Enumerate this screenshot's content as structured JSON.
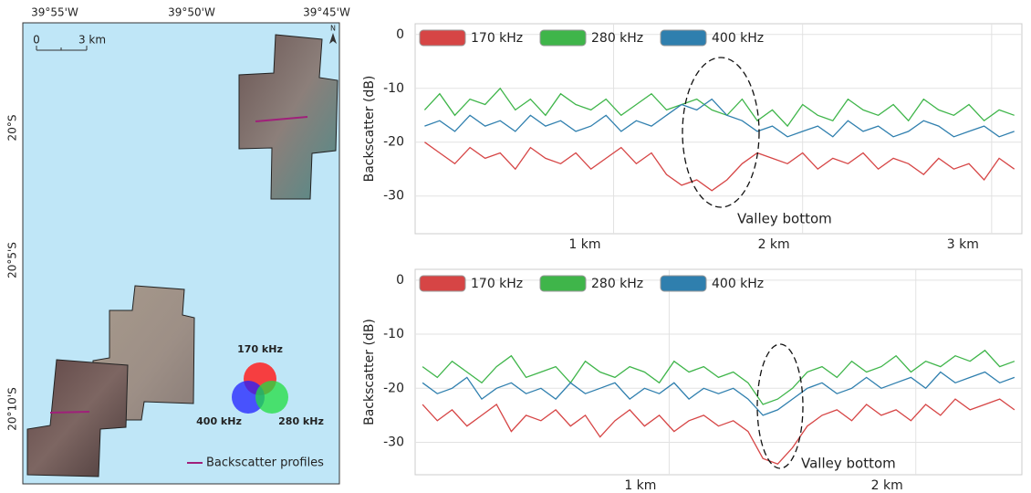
{
  "chart_data": [
    {
      "type": "line",
      "ylabel": "Backscatter (dB)",
      "annotation": "Valley bottom",
      "x": [
        0,
        0.08,
        0.16,
        0.24,
        0.32,
        0.4,
        0.48,
        0.56,
        0.64,
        0.72,
        0.8,
        0.88,
        0.96,
        1.04,
        1.12,
        1.2,
        1.28,
        1.36,
        1.44,
        1.52,
        1.6,
        1.68,
        1.76,
        1.84,
        1.92,
        2,
        2.08,
        2.16,
        2.24,
        2.32,
        2.4,
        2.48,
        2.56,
        2.64,
        2.72,
        2.8,
        2.88,
        2.96,
        3.04,
        3.12
      ],
      "xlim": [
        -0.05,
        3.16
      ],
      "xticks": [
        {
          "value": 1,
          "label": "1 km"
        },
        {
          "value": 2,
          "label": "2 km"
        },
        {
          "value": 3,
          "label": "3 km"
        }
      ],
      "ylim": [
        -37,
        2
      ],
      "yticks": [
        0,
        -10,
        -20,
        -30
      ],
      "grid": true,
      "series": [
        {
          "name": "170 kHz",
          "color": "#d64545",
          "values": [
            -20,
            -22,
            -24,
            -21,
            -23,
            -22,
            -25,
            -21,
            -23,
            -24,
            -22,
            -25,
            -23,
            -21,
            -24,
            -22,
            -26,
            -28,
            -27,
            -29,
            -27,
            -24,
            -22,
            -23,
            -24,
            -22,
            -25,
            -23,
            -24,
            -22,
            -25,
            -23,
            -24,
            -26,
            -23,
            -25,
            -24,
            -27,
            -23,
            -25
          ]
        },
        {
          "name": "280 kHz",
          "color": "#3fb54a",
          "values": [
            -14,
            -11,
            -15,
            -12,
            -13,
            -10,
            -14,
            -12,
            -15,
            -11,
            -13,
            -14,
            -12,
            -15,
            -13,
            -11,
            -14,
            -13,
            -12,
            -14,
            -15,
            -12,
            -16,
            -14,
            -17,
            -13,
            -15,
            -16,
            -12,
            -14,
            -15,
            -13,
            -16,
            -12,
            -14,
            -15,
            -13,
            -16,
            -14,
            -15
          ]
        },
        {
          "name": "400 kHz",
          "color": "#2f7fae",
          "values": [
            -17,
            -16,
            -18,
            -15,
            -17,
            -16,
            -18,
            -15,
            -17,
            -16,
            -18,
            -17,
            -15,
            -18,
            -16,
            -17,
            -15,
            -13,
            -14,
            -12,
            -15,
            -16,
            -18,
            -17,
            -19,
            -18,
            -17,
            -19,
            -16,
            -18,
            -17,
            -19,
            -18,
            -16,
            -17,
            -19,
            -18,
            -17,
            -19,
            -18
          ]
        }
      ]
    },
    {
      "type": "line",
      "ylabel": "Backscatter (dB)",
      "annotation": "Valley bottom",
      "x": [
        0,
        0.06,
        0.12,
        0.18,
        0.24,
        0.3,
        0.36,
        0.42,
        0.48,
        0.54,
        0.6,
        0.66,
        0.72,
        0.78,
        0.84,
        0.9,
        0.96,
        1.02,
        1.08,
        1.14,
        1.2,
        1.26,
        1.32,
        1.38,
        1.44,
        1.5,
        1.56,
        1.62,
        1.68,
        1.74,
        1.8,
        1.86,
        1.92,
        1.98,
        2.04,
        2.1,
        2.16,
        2.22,
        2.28,
        2.34,
        2.4
      ],
      "xlim": [
        -0.03,
        2.43
      ],
      "xticks": [
        {
          "value": 1,
          "label": "1 km"
        },
        {
          "value": 2,
          "label": "2 km"
        }
      ],
      "ylim": [
        -36,
        2
      ],
      "yticks": [
        0,
        -10,
        -20,
        -30
      ],
      "grid": true,
      "series": [
        {
          "name": "170 kHz",
          "color": "#d64545",
          "values": [
            -23,
            -26,
            -24,
            -27,
            -25,
            -23,
            -28,
            -25,
            -26,
            -24,
            -27,
            -25,
            -29,
            -26,
            -24,
            -27,
            -25,
            -28,
            -26,
            -25,
            -27,
            -26,
            -28,
            -33,
            -34,
            -31,
            -27,
            -25,
            -24,
            -26,
            -23,
            -25,
            -24,
            -26,
            -23,
            -25,
            -22,
            -24,
            -23,
            -22,
            -24
          ]
        },
        {
          "name": "280 kHz",
          "color": "#3fb54a",
          "values": [
            -16,
            -18,
            -15,
            -17,
            -19,
            -16,
            -14,
            -18,
            -17,
            -16,
            -19,
            -15,
            -17,
            -18,
            -16,
            -17,
            -19,
            -15,
            -17,
            -16,
            -18,
            -17,
            -19,
            -23,
            -22,
            -20,
            -17,
            -16,
            -18,
            -15,
            -17,
            -16,
            -14,
            -17,
            -15,
            -16,
            -14,
            -15,
            -13,
            -16,
            -15
          ]
        },
        {
          "name": "400 kHz",
          "color": "#2f7fae",
          "values": [
            -19,
            -21,
            -20,
            -18,
            -22,
            -20,
            -19,
            -21,
            -20,
            -22,
            -19,
            -21,
            -20,
            -19,
            -22,
            -20,
            -21,
            -19,
            -22,
            -20,
            -21,
            -20,
            -22,
            -25,
            -24,
            -22,
            -20,
            -19,
            -21,
            -20,
            -18,
            -20,
            -19,
            -18,
            -20,
            -17,
            -19,
            -18,
            -17,
            -19,
            -18
          ]
        }
      ]
    }
  ],
  "map": {
    "lon_labels": [
      "39°55'W",
      "39°50'W",
      "39°45'W"
    ],
    "lat_labels": [
      "20°S",
      "20°5'S",
      "20°10'S"
    ],
    "scale": [
      "0",
      "3 km"
    ],
    "north": "N",
    "rgb_labels": [
      "170 kHz",
      "400 kHz",
      "280 kHz"
    ],
    "legend": "Backscatter profiles"
  }
}
